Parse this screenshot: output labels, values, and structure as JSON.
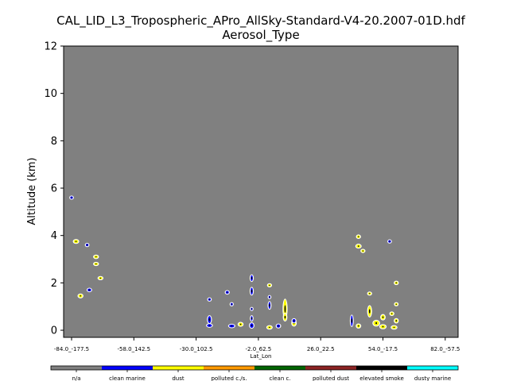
{
  "chart_data": {
    "type": "heatmap",
    "title_line1": "CAL_LID_L3_Tropospheric_APro_AllSky-Standard-V4-20.2007-01D.hdf",
    "title_line2": "Aerosol_Type",
    "xlabel": "Lat_Lon",
    "ylabel": "Altitude (km)",
    "ylim": [
      -0.3,
      12
    ],
    "yticks": [
      "0",
      "2",
      "4",
      "6",
      "8",
      "10",
      "12"
    ],
    "xticks": [
      "-84.0_-177.5",
      "-58.0_142.5",
      "-30.0_102.5",
      "-2.0_62.5",
      "26.0_22.5",
      "54.0_-17.5",
      "82.0_-57.5"
    ],
    "background_color": "#808080",
    "grid": false,
    "legend_placement": "colorbar-bottom",
    "categories": [
      {
        "label": "n/a",
        "color": "#808080"
      },
      {
        "label": "clean marine",
        "color": "#0000ff"
      },
      {
        "label": "dust",
        "color": "#ffff00"
      },
      {
        "label": "polluted c./s.",
        "color": "#ff9900"
      },
      {
        "label": "clean c.",
        "color": "#006400"
      },
      {
        "label": "polluted dust",
        "color": "#8b2323"
      },
      {
        "label": "elevated smoke",
        "color": "#000000"
      },
      {
        "label": "dusty marine",
        "color": "#00ffff"
      }
    ],
    "blobs": [
      {
        "lat": -84.0,
        "alt": 5.6,
        "w": 1.2,
        "h": 0.08,
        "color": "#0000ff"
      },
      {
        "lat": -82.0,
        "alt": 3.75,
        "w": 2.0,
        "h": 0.14,
        "color": "#ffff00"
      },
      {
        "lat": -77.0,
        "alt": 3.6,
        "w": 1.2,
        "h": 0.08,
        "color": "#0000ff"
      },
      {
        "lat": -73.0,
        "alt": 3.1,
        "w": 1.8,
        "h": 0.12,
        "color": "#ffff00"
      },
      {
        "lat": -73.0,
        "alt": 2.8,
        "w": 1.8,
        "h": 0.1,
        "color": "#ffff00"
      },
      {
        "lat": -71.0,
        "alt": 2.2,
        "w": 1.8,
        "h": 0.1,
        "color": "#ffff00"
      },
      {
        "lat": -80.0,
        "alt": 1.45,
        "w": 1.8,
        "h": 0.14,
        "color": "#ffff00"
      },
      {
        "lat": -76.0,
        "alt": 1.7,
        "w": 1.6,
        "h": 0.12,
        "color": "#0000ff"
      },
      {
        "lat": -22.0,
        "alt": 1.3,
        "w": 1.2,
        "h": 0.08,
        "color": "#0000ff"
      },
      {
        "lat": -22.0,
        "alt": 0.45,
        "w": 1.4,
        "h": 0.3,
        "color": "#0000ff"
      },
      {
        "lat": -22.0,
        "alt": 0.2,
        "w": 2.2,
        "h": 0.12,
        "color": "#0000ff"
      },
      {
        "lat": -14.0,
        "alt": 1.6,
        "w": 1.4,
        "h": 0.12,
        "color": "#0000ff"
      },
      {
        "lat": -12.0,
        "alt": 1.1,
        "w": 1.0,
        "h": 0.08,
        "color": "#0000ff"
      },
      {
        "lat": -12.0,
        "alt": 0.18,
        "w": 2.4,
        "h": 0.12,
        "color": "#0000ff"
      },
      {
        "lat": -8.0,
        "alt": 0.25,
        "w": 1.8,
        "h": 0.14,
        "color": "#ffff00"
      },
      {
        "lat": -3.0,
        "alt": 2.2,
        "w": 1.0,
        "h": 0.25,
        "color": "#0000ff"
      },
      {
        "lat": -3.0,
        "alt": 1.65,
        "w": 1.0,
        "h": 0.3,
        "color": "#0000ff"
      },
      {
        "lat": -3.0,
        "alt": 0.9,
        "w": 0.8,
        "h": 0.08,
        "color": "#0000ff"
      },
      {
        "lat": -3.0,
        "alt": 0.5,
        "w": 0.8,
        "h": 0.2,
        "color": "#0000ff"
      },
      {
        "lat": -3.0,
        "alt": 0.2,
        "w": 1.6,
        "h": 0.2,
        "color": "#0000ff"
      },
      {
        "lat": 5.0,
        "alt": 1.9,
        "w": 1.4,
        "h": 0.08,
        "color": "#ffff00"
      },
      {
        "lat": 5.0,
        "alt": 1.4,
        "w": 0.8,
        "h": 0.08,
        "color": "#0000ff"
      },
      {
        "lat": 5.0,
        "alt": 1.05,
        "w": 0.9,
        "h": 0.3,
        "color": "#0000ff"
      },
      {
        "lat": 5.0,
        "alt": 0.12,
        "w": 2.0,
        "h": 0.12,
        "color": "#ffff00"
      },
      {
        "lat": 9.0,
        "alt": 0.18,
        "w": 1.6,
        "h": 0.14,
        "color": "#0000ff"
      },
      {
        "lat": 12.0,
        "alt": 0.9,
        "w": 1.4,
        "h": 0.8,
        "color": "#ffff00"
      },
      {
        "lat": 12.0,
        "alt": 0.55,
        "w": 1.2,
        "h": 0.3,
        "color": "#ffff00"
      },
      {
        "lat": 16.0,
        "alt": 0.3,
        "w": 1.6,
        "h": 0.22,
        "color": "#ffff00"
      },
      {
        "lat": 16.0,
        "alt": 0.4,
        "w": 1.4,
        "h": 0.15,
        "color": "#0000ff"
      },
      {
        "lat": 42.0,
        "alt": 0.4,
        "w": 0.9,
        "h": 0.45,
        "color": "#0000ff"
      },
      {
        "lat": 45.0,
        "alt": 0.18,
        "w": 1.6,
        "h": 0.15,
        "color": "#ffff00"
      },
      {
        "lat": 45.0,
        "alt": 3.95,
        "w": 1.4,
        "h": 0.12,
        "color": "#ffff00"
      },
      {
        "lat": 45.0,
        "alt": 3.55,
        "w": 2.0,
        "h": 0.14,
        "color": "#ffff00"
      },
      {
        "lat": 47.0,
        "alt": 3.35,
        "w": 1.4,
        "h": 0.08,
        "color": "#ffff00"
      },
      {
        "lat": 50.0,
        "alt": 1.55,
        "w": 1.4,
        "h": 0.1,
        "color": "#ffff00"
      },
      {
        "lat": 50.0,
        "alt": 0.8,
        "w": 1.4,
        "h": 0.45,
        "color": "#ffff00"
      },
      {
        "lat": 53.0,
        "alt": 0.3,
        "w": 2.6,
        "h": 0.22,
        "color": "#ffff00"
      },
      {
        "lat": 56.0,
        "alt": 0.55,
        "w": 1.6,
        "h": 0.2,
        "color": "#ffff00"
      },
      {
        "lat": 56.0,
        "alt": 0.15,
        "w": 2.4,
        "h": 0.15,
        "color": "#ffff00"
      },
      {
        "lat": 59.0,
        "alt": 3.75,
        "w": 1.2,
        "h": 0.08,
        "color": "#0000ff"
      },
      {
        "lat": 62.0,
        "alt": 2.0,
        "w": 1.4,
        "h": 0.12,
        "color": "#ffff00"
      },
      {
        "lat": 62.0,
        "alt": 1.1,
        "w": 1.2,
        "h": 0.1,
        "color": "#ffff00"
      },
      {
        "lat": 60.0,
        "alt": 0.7,
        "w": 1.4,
        "h": 0.12,
        "color": "#ffff00"
      },
      {
        "lat": 62.0,
        "alt": 0.4,
        "w": 1.4,
        "h": 0.16,
        "color": "#ffff00"
      },
      {
        "lat": 61.0,
        "alt": 0.12,
        "w": 2.2,
        "h": 0.12,
        "color": "#ffff00"
      }
    ]
  }
}
